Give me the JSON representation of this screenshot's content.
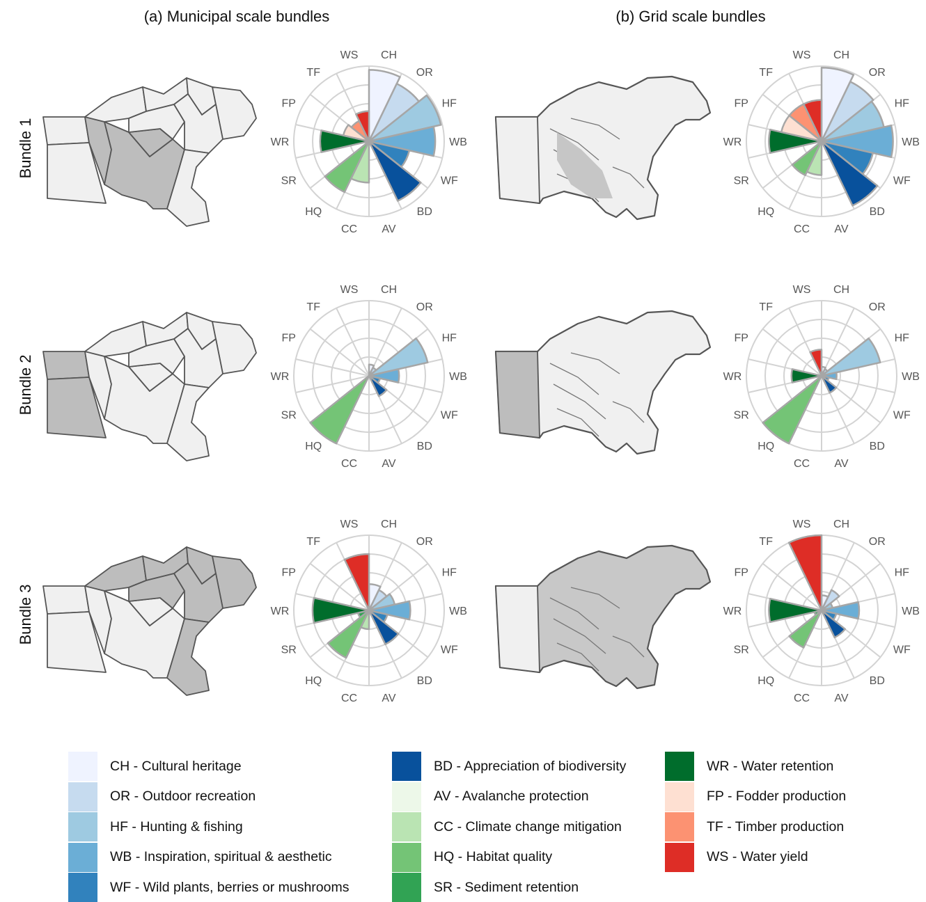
{
  "panel_titles": [
    "(a) Municipal scale bundles",
    "(b) Grid scale bundles"
  ],
  "row_labels": [
    "Bundle 1",
    "Bundle 2",
    "Bundle 3"
  ],
  "services": [
    {
      "code": "CH",
      "label": "CH - Cultural heritage",
      "color": "#eff3ff"
    },
    {
      "code": "OR",
      "label": "OR - Outdoor recreation",
      "color": "#c6dbef"
    },
    {
      "code": "HF",
      "label": "HF - Hunting & fishing",
      "color": "#9ecae1"
    },
    {
      "code": "WB",
      "label": "WB - Inspiration, spiritual & aesthetic",
      "color": "#6baed6"
    },
    {
      "code": "WF",
      "label": "WF - Wild plants, berries or mushrooms",
      "color": "#3182bd"
    },
    {
      "code": "BD",
      "label": "BD - Appreciation of biodiversity",
      "color": "#08519c"
    },
    {
      "code": "AV",
      "label": "AV - Avalanche protection",
      "color": "#edf8e9"
    },
    {
      "code": "CC",
      "label": "CC - Climate change mitigation",
      "color": "#bae4b3"
    },
    {
      "code": "HQ",
      "label": "HQ - Habitat quality",
      "color": "#74c476"
    },
    {
      "code": "SR",
      "label": "SR - Sediment retention",
      "color": "#31a354"
    },
    {
      "code": "WR",
      "label": "WR - Water retention",
      "color": "#006d2c"
    },
    {
      "code": "FP",
      "label": "FP - Fodder production",
      "color": "#fee0d2"
    },
    {
      "code": "TF",
      "label": "TF - Timber production",
      "color": "#fc9272"
    },
    {
      "code": "WS",
      "label": "WS - Water yield",
      "color": "#de2d26"
    }
  ],
  "map_colors": {
    "highlight": "#bdbdbd",
    "background": "#f0f0f0",
    "border": "#555555"
  },
  "chart_data": [
    {
      "type": "polar-bar",
      "panel": "(a) Municipal scale bundles",
      "row": "Bundle 1",
      "categories": [
        "CH",
        "OR",
        "HF",
        "WB",
        "WF",
        "BD",
        "AV",
        "CC",
        "HQ",
        "SR",
        "WR",
        "FP",
        "TF",
        "WS"
      ],
      "values": [
        0.95,
        0.85,
        0.98,
        0.88,
        0.55,
        0.88,
        0.0,
        0.55,
        0.75,
        0.0,
        0.65,
        0.35,
        0.3,
        0.4
      ]
    },
    {
      "type": "polar-bar",
      "panel": "(b) Grid scale bundles",
      "row": "Bundle 1",
      "categories": [
        "CH",
        "OR",
        "HF",
        "WB",
        "WF",
        "BD",
        "AV",
        "CC",
        "HQ",
        "SR",
        "WR",
        "FP",
        "TF",
        "WS"
      ],
      "values": [
        0.98,
        0.88,
        0.85,
        0.95,
        0.7,
        0.95,
        0.0,
        0.45,
        0.5,
        0.0,
        0.7,
        0.55,
        0.55,
        0.55
      ]
    },
    {
      "type": "polar-bar",
      "panel": "(a) Municipal scale bundles",
      "row": "Bundle 2",
      "categories": [
        "CH",
        "OR",
        "HF",
        "WB",
        "WF",
        "BD",
        "AV",
        "CC",
        "HQ",
        "SR",
        "WR",
        "FP",
        "TF",
        "WS"
      ],
      "values": [
        0.15,
        0.12,
        0.8,
        0.4,
        0.15,
        0.3,
        0.0,
        0.0,
        1.0,
        0.0,
        0.0,
        0.0,
        0.0,
        0.0
      ]
    },
    {
      "type": "polar-bar",
      "panel": "(b) Grid scale bundles",
      "row": "Bundle 2",
      "categories": [
        "CH",
        "OR",
        "HF",
        "WB",
        "WF",
        "BD",
        "AV",
        "CC",
        "HQ",
        "SR",
        "WR",
        "FP",
        "TF",
        "WS"
      ],
      "values": [
        0.12,
        0.1,
        0.8,
        0.2,
        0.1,
        0.25,
        0.0,
        0.0,
        1.0,
        0.0,
        0.4,
        0.0,
        0.0,
        0.35
      ]
    },
    {
      "type": "polar-bar",
      "panel": "(a) Municipal scale bundles",
      "row": "Bundle 3",
      "categories": [
        "CH",
        "OR",
        "HF",
        "WB",
        "WF",
        "BD",
        "AV",
        "CC",
        "HQ",
        "SR",
        "WR",
        "FP",
        "TF",
        "WS"
      ],
      "values": [
        0.35,
        0.3,
        0.35,
        0.55,
        0.25,
        0.5,
        0.0,
        0.25,
        0.7,
        0.15,
        0.75,
        0.0,
        0.0,
        0.75
      ]
    },
    {
      "type": "polar-bar",
      "panel": "(b) Grid scale bundles",
      "row": "Bundle 3",
      "categories": [
        "CH",
        "OR",
        "HF",
        "WB",
        "WF",
        "BD",
        "AV",
        "CC",
        "HQ",
        "SR",
        "WR",
        "FP",
        "TF",
        "WS"
      ],
      "values": [
        0.2,
        0.3,
        0.15,
        0.5,
        0.2,
        0.4,
        0.0,
        0.0,
        0.55,
        0.1,
        0.7,
        0.0,
        0.0,
        1.0
      ]
    }
  ]
}
